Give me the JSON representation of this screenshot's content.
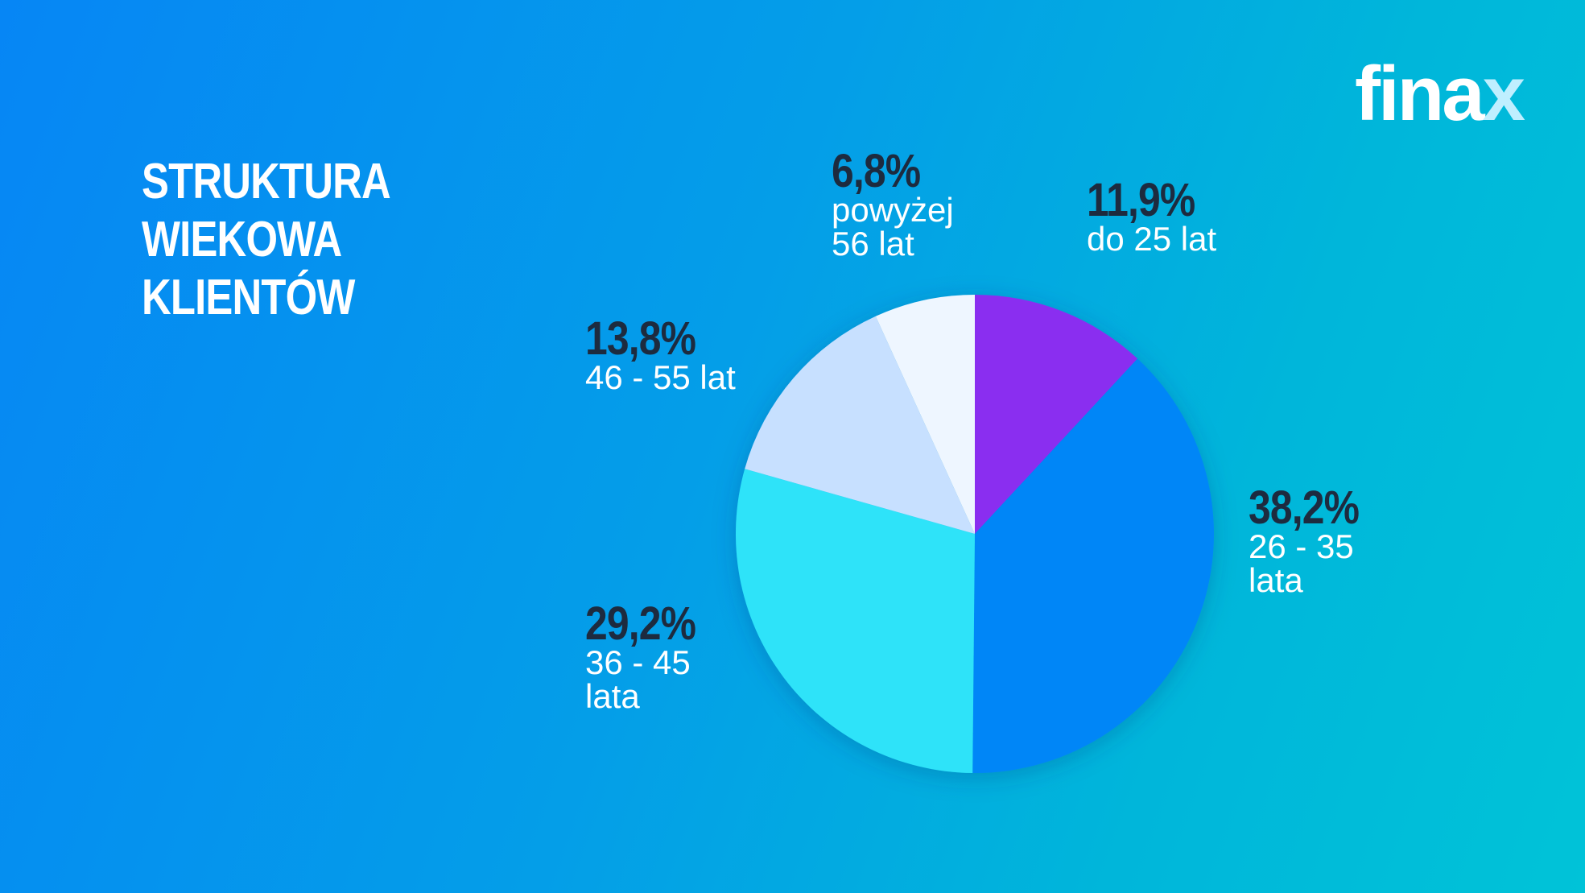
{
  "title_lines": [
    "STRUKTURA",
    "WIEKOWA",
    "KLIENTÓW"
  ],
  "logo": {
    "text": "fina",
    "accent": "x"
  },
  "colors": {
    "background_start": "#0686f5",
    "background_end": "#00c3d8",
    "label_pct": "#1d2b3f"
  },
  "chart_data": {
    "type": "pie",
    "start_angle_deg": 0,
    "direction": "clockwise",
    "slices": [
      {
        "label": "do 25 lat",
        "value": 11.9,
        "pct_text": "11,9%",
        "desc": "do 25 lat",
        "color": "#8a2ef0"
      },
      {
        "label": "26 - 35 lata",
        "value": 38.2,
        "pct_text": "38,2%",
        "desc": "26 - 35 lata",
        "color": "#0086f7"
      },
      {
        "label": "36 - 45 lata",
        "value": 29.2,
        "pct_text": "29,2%",
        "desc": "36 - 45 lata",
        "color": "#2fe3f9"
      },
      {
        "label": "46 - 55 lat",
        "value": 13.8,
        "pct_text": "13,8%",
        "desc": "46 - 55 lat",
        "color": "#c7e0ff"
      },
      {
        "label": "powyżej 56 lat",
        "value": 6.8,
        "pct_text": "6,8%",
        "desc": "powyżej 56 lat",
        "color": "#eef6ff"
      }
    ]
  }
}
